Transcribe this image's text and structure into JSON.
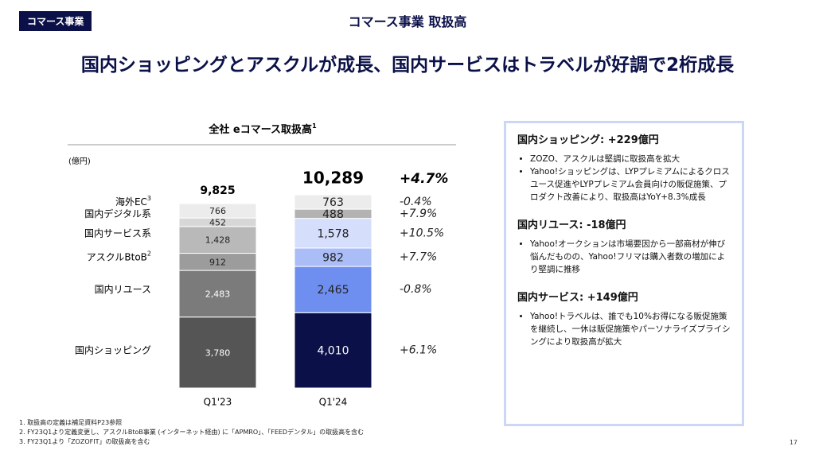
{
  "header": {
    "tag": "コマース事業",
    "title": "コマース事業 取扱高"
  },
  "headline": "国内ショッピングとアスクルが成長、国内サービスはトラベルが好調で2桁成長",
  "chart_data": {
    "type": "stacked-bar",
    "title": "全社 eコマース取扱高",
    "title_note": "1",
    "unit_label": "(億円)",
    "categories": [
      "Q1'23",
      "Q1'24"
    ],
    "totals": {
      "values": [
        9825,
        10289
      ],
      "value_labels": [
        "9,825",
        "10,289"
      ]
    },
    "total_growth": {
      "value": 4.7,
      "label": "+4.7%"
    },
    "series": [
      {
        "name": "国内ショッピング",
        "colors": [
          "#555555",
          "#0b1048"
        ],
        "values": [
          3780,
          4010
        ],
        "value_labels": [
          "3,780",
          "4,010"
        ],
        "growth": {
          "value": 6.1,
          "label": "+6.1%"
        }
      },
      {
        "name": "国内リユース",
        "colors": [
          "#7b7b7b",
          "#6f8ff0"
        ],
        "values": [
          2483,
          2465
        ],
        "value_labels": [
          "2,483",
          "2,465"
        ],
        "growth": {
          "value": -0.8,
          "label": "-0.8%"
        }
      },
      {
        "name": "アスクルBtoB",
        "note": "2",
        "colors": [
          "#9c9c9c",
          "#aabdf7"
        ],
        "values": [
          912,
          982
        ],
        "value_labels": [
          "912",
          "982"
        ],
        "growth": {
          "value": 7.7,
          "label": "+7.7%"
        }
      },
      {
        "name": "国内サービス系",
        "colors": [
          "#b9b9b9",
          "#d5defb"
        ],
        "values": [
          1428,
          1578
        ],
        "value_labels": [
          "1,428",
          "1,578"
        ],
        "growth": {
          "value": 10.5,
          "label": "+10.5%"
        }
      },
      {
        "name": "国内デジタル系",
        "colors": [
          "#d7d7d7",
          "#b3b3b3"
        ],
        "values": [
          452,
          488
        ],
        "value_labels": [
          "452",
          "488"
        ],
        "growth": {
          "value": 7.9,
          "label": "+7.9%"
        }
      },
      {
        "name": "海外EC",
        "note": "3",
        "colors": [
          "#ececec",
          "#ececec"
        ],
        "values": [
          766,
          763
        ],
        "value_labels": [
          "766",
          "763"
        ],
        "growth": {
          "value": -0.4,
          "label": "-0.4%"
        }
      }
    ]
  },
  "panel": {
    "sections": [
      {
        "heading": "国内ショッピング: +229億円",
        "bullets": [
          "ZOZO、アスクルは堅調に取扱高を拡大",
          "Yahoo!ショッピングは、LYPプレミアムによるクロスユース促進やLYPプレミアム会員向けの販促施策、プロダクト改善により、取扱高はYoY+8.3%成長"
        ]
      },
      {
        "heading": "国内リユース: -18億円",
        "bullets": [
          "Yahoo!オークションは市場要因から一部商材が伸び悩んだものの、Yahoo!フリマは購入者数の増加により堅調に推移"
        ]
      },
      {
        "heading": "国内サービス: +149億円",
        "bullets": [
          "Yahoo!トラベルは、誰でも10%お得になる販促施策を継続し、一休は販促施策やパーソナライズプライシングにより取扱高が拡大"
        ]
      }
    ]
  },
  "footnotes": [
    "1.  取扱高の定義は補足資料P23参照",
    "2.  FY23Q1より定義変更し、アスクルBtoB事業 (インターネット経由) に「APMRO」、「FEEDデンタル」の取扱高を含む",
    "3.  FY23Q1より「ZOZOFIT」の取扱高を含む"
  ],
  "page_number": "17"
}
